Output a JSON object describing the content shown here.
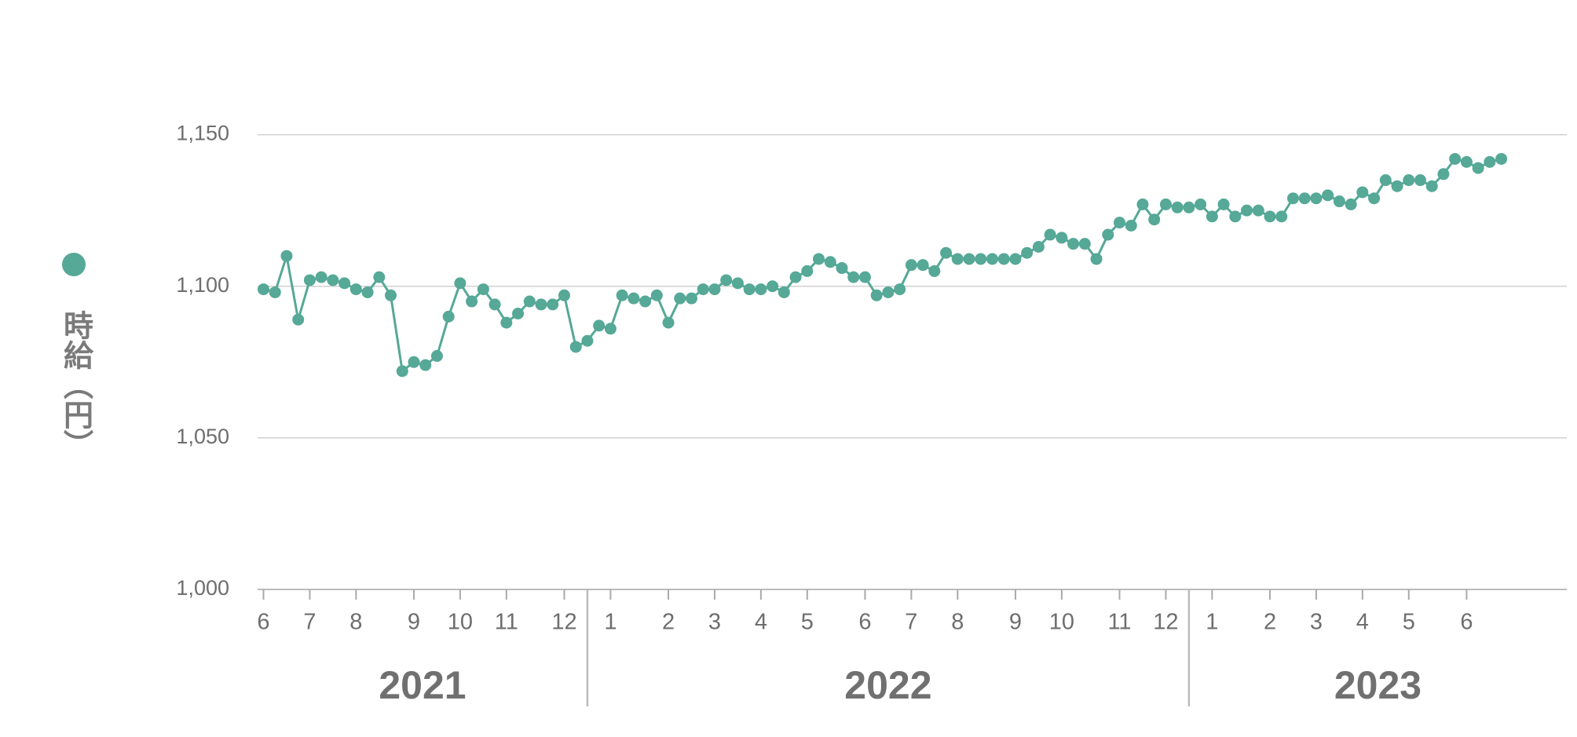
{
  "chart_data": {
    "type": "line",
    "series": [
      {
        "name": "時給（円）",
        "color": "#56a897",
        "values": [
          1099,
          1098,
          1110,
          1089,
          1102,
          1103,
          1102,
          1101,
          1099,
          1098,
          1103,
          1097,
          1072,
          1075,
          1074,
          1077,
          1090,
          1101,
          1095,
          1099,
          1094,
          1088,
          1091,
          1095,
          1094,
          1094,
          1097,
          1080,
          1082,
          1087,
          1086,
          1097,
          1096,
          1095,
          1097,
          1088,
          1096,
          1096,
          1099,
          1099,
          1102,
          1101,
          1099,
          1099,
          1100,
          1098,
          1103,
          1105,
          1109,
          1108,
          1106,
          1103,
          1103,
          1097,
          1098,
          1099,
          1107,
          1107,
          1105,
          1111,
          1109,
          1109,
          1109,
          1109,
          1109,
          1109,
          1111,
          1113,
          1117,
          1116,
          1114,
          1114,
          1109,
          1117,
          1121,
          1120,
          1127,
          1122,
          1127,
          1126,
          1126,
          1127,
          1123,
          1127,
          1123,
          1125,
          1125,
          1123,
          1123,
          1129,
          1129,
          1129,
          1130,
          1128,
          1127,
          1131,
          1129,
          1135,
          1133,
          1135,
          1135,
          1133,
          1137,
          1142,
          1141,
          1139,
          1141,
          1142
        ]
      }
    ],
    "xticks": [
      {
        "value": 0,
        "label": "6"
      },
      {
        "value": 4,
        "label": "7"
      },
      {
        "value": 8,
        "label": "8"
      },
      {
        "value": 13,
        "label": "9"
      },
      {
        "value": 17,
        "label": "10"
      },
      {
        "value": 21,
        "label": "11"
      },
      {
        "value": 26,
        "label": "12"
      },
      {
        "value": 30,
        "label": "1"
      },
      {
        "value": 35,
        "label": "2"
      },
      {
        "value": 39,
        "label": "3"
      },
      {
        "value": 43,
        "label": "4"
      },
      {
        "value": 47,
        "label": "5"
      },
      {
        "value": 52,
        "label": "6"
      },
      {
        "value": 56,
        "label": "7"
      },
      {
        "value": 60,
        "label": "8"
      },
      {
        "value": 65,
        "label": "9"
      },
      {
        "value": 69,
        "label": "10"
      },
      {
        "value": 74,
        "label": "11"
      },
      {
        "value": 78,
        "label": "12"
      },
      {
        "value": 82,
        "label": "1"
      },
      {
        "value": 87,
        "label": "2"
      },
      {
        "value": 91,
        "label": "3"
      },
      {
        "value": 95,
        "label": "4"
      },
      {
        "value": 99,
        "label": "5"
      },
      {
        "value": 104,
        "label": "6"
      }
    ],
    "years": [
      "2021",
      "2022",
      "2023"
    ],
    "ylim": [
      1000,
      1175
    ],
    "yticks": [
      {
        "value": 1000,
        "label": "1,000"
      },
      {
        "value": 1050,
        "label": "1,050"
      },
      {
        "value": 1100,
        "label": "1,100"
      },
      {
        "value": 1150,
        "label": "1,150"
      }
    ],
    "grid": true
  }
}
